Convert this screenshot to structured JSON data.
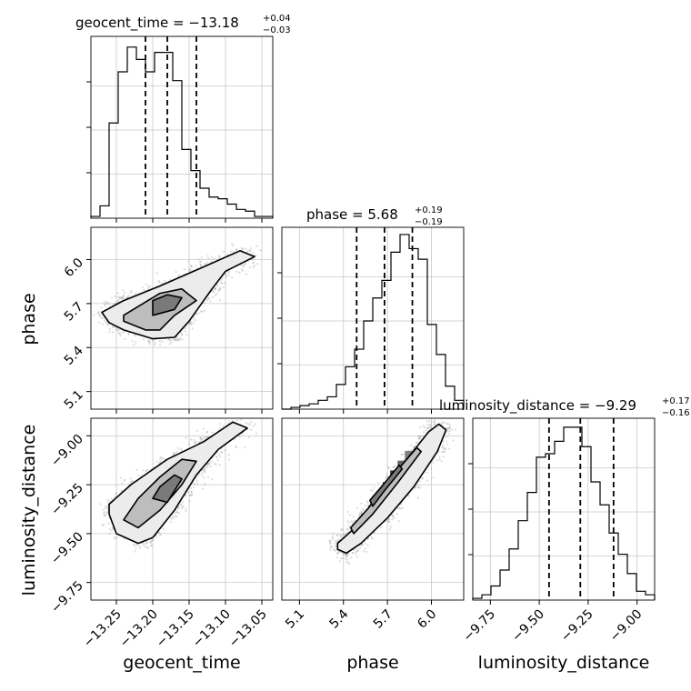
{
  "chart_data": {
    "type": "corner",
    "parameters": [
      "geocent_time",
      "phase",
      "luminosity_distance"
    ],
    "panels": {
      "geocent_time": {
        "title_main": "geocent_time = −13.18",
        "title_sup": "+0.04",
        "title_sub": "−0.03",
        "median": -13.18,
        "lower": -13.21,
        "upper": -13.14,
        "hist_x_range": [
          -13.285,
          -13.035
        ],
        "hist_counts": [
          0.01,
          0.07,
          0.54,
          0.83,
          0.97,
          0.9,
          0.83,
          0.94,
          0.94,
          0.78,
          0.39,
          0.27,
          0.17,
          0.12,
          0.11,
          0.08,
          0.05,
          0.04,
          0.01,
          0.01
        ],
        "xticks": [
          "−13.25",
          "−13.20",
          "−13.15",
          "−13.10",
          "−13.05"
        ],
        "xtick_values": [
          -13.25,
          -13.2,
          -13.15,
          -13.1,
          -13.05
        ]
      },
      "phase": {
        "title_main": "phase = 5.68",
        "title_sup": "+0.19",
        "title_sub": "−0.19",
        "median": 5.68,
        "lower": 5.49,
        "upper": 5.87,
        "hist_x_range": [
          4.98,
          6.22
        ],
        "hist_counts": [
          0.0,
          0.01,
          0.02,
          0.03,
          0.05,
          0.07,
          0.14,
          0.24,
          0.34,
          0.5,
          0.63,
          0.73,
          0.89,
          0.99,
          0.91,
          0.85,
          0.48,
          0.31,
          0.13,
          0.05
        ],
        "xticks": [
          "5.1",
          "5.4",
          "5.7",
          "6.0"
        ],
        "xtick_values": [
          5.1,
          5.4,
          5.7,
          6.0
        ],
        "yticks": [
          "6.0",
          "5.7",
          "5.4",
          "5.1"
        ],
        "ytick_values": [
          6.0,
          5.7,
          5.4,
          5.1
        ]
      },
      "luminosity_distance": {
        "title_main": "luminosity_distance = −9.29",
        "title_sup": "+0.17",
        "title_sub": "−0.16",
        "median": -9.29,
        "lower": -9.45,
        "upper": -9.12,
        "hist_x_range": [
          -9.84,
          -8.91
        ],
        "hist_counts": [
          0.01,
          0.03,
          0.08,
          0.17,
          0.29,
          0.45,
          0.61,
          0.81,
          0.83,
          0.9,
          0.98,
          0.98,
          0.87,
          0.67,
          0.54,
          0.38,
          0.26,
          0.15,
          0.05,
          0.03
        ],
        "xticks": [
          "−9.75",
          "−9.50",
          "−9.25",
          "−9.00"
        ],
        "xtick_values": [
          -9.75,
          -9.5,
          -9.25,
          -9.0
        ],
        "yticks": [
          "−9.00",
          "−9.25",
          "−9.50",
          "−9.75"
        ],
        "ytick_values": [
          -9.0,
          -9.25,
          -9.5,
          -9.75
        ]
      }
    },
    "xlabels": [
      "geocent_time",
      "phase",
      "luminosity_distance"
    ],
    "ylabels": [
      "phase",
      "luminosity_distance"
    ],
    "pairs": [
      {
        "x": "geocent_time",
        "y": "phase",
        "samples_center": [
          -13.18,
          5.68
        ],
        "contours": [
          [
            [
              -13.26,
              5.57
            ],
            [
              -13.24,
              5.52
            ],
            [
              -13.2,
              5.46
            ],
            [
              -13.17,
              5.47
            ],
            [
              -13.15,
              5.58
            ],
            [
              -13.12,
              5.79
            ],
            [
              -13.1,
              5.92
            ],
            [
              -13.06,
              6.02
            ],
            [
              -13.08,
              6.06
            ],
            [
              -13.13,
              5.95
            ],
            [
              -13.19,
              5.82
            ],
            [
              -13.24,
              5.72
            ],
            [
              -13.27,
              5.64
            ]
          ],
          [
            [
              -13.24,
              5.58
            ],
            [
              -13.21,
              5.52
            ],
            [
              -13.19,
              5.52
            ],
            [
              -13.17,
              5.62
            ],
            [
              -13.14,
              5.72
            ],
            [
              -13.16,
              5.8
            ],
            [
              -13.19,
              5.77
            ],
            [
              -13.22,
              5.68
            ],
            [
              -13.24,
              5.62
            ]
          ],
          [
            [
              -13.2,
              5.62
            ],
            [
              -13.17,
              5.66
            ],
            [
              -13.16,
              5.74
            ],
            [
              -13.18,
              5.76
            ],
            [
              -13.2,
              5.72
            ]
          ]
        ],
        "density_cells": [
          [
            -13.18,
            5.68,
            0.9
          ],
          [
            -13.17,
            5.71,
            0.85
          ],
          [
            -13.19,
            5.66,
            0.7
          ],
          [
            -13.16,
            5.74,
            0.6
          ],
          [
            -13.2,
            5.63,
            0.55
          ],
          [
            -13.18,
            5.73,
            0.5
          ],
          [
            -13.24,
            5.56,
            0.35
          ]
        ]
      },
      {
        "x": "geocent_time",
        "y": "luminosity_distance",
        "samples_center": [
          -13.18,
          -9.29
        ],
        "contours": [
          [
            [
              -13.26,
              -9.4
            ],
            [
              -13.25,
              -9.5
            ],
            [
              -13.22,
              -9.55
            ],
            [
              -13.2,
              -9.52
            ],
            [
              -13.17,
              -9.38
            ],
            [
              -13.14,
              -9.2
            ],
            [
              -13.11,
              -9.07
            ],
            [
              -13.07,
              -8.96
            ],
            [
              -13.09,
              -8.93
            ],
            [
              -13.13,
              -9.03
            ],
            [
              -13.18,
              -9.12
            ],
            [
              -13.23,
              -9.25
            ],
            [
              -13.26,
              -9.35
            ]
          ],
          [
            [
              -13.24,
              -9.43
            ],
            [
              -13.22,
              -9.47
            ],
            [
              -13.19,
              -9.38
            ],
            [
              -13.16,
              -9.25
            ],
            [
              -13.14,
              -9.13
            ],
            [
              -13.16,
              -9.12
            ],
            [
              -13.19,
              -9.21
            ],
            [
              -13.22,
              -9.32
            ]
          ],
          [
            [
              -13.2,
              -9.32
            ],
            [
              -13.18,
              -9.34
            ],
            [
              -13.16,
              -9.22
            ],
            [
              -13.17,
              -9.2
            ],
            [
              -13.19,
              -9.26
            ]
          ]
        ],
        "density_cells": [
          [
            -13.18,
            -9.28,
            0.9
          ],
          [
            -13.17,
            -9.24,
            0.8
          ],
          [
            -13.19,
            -9.32,
            0.7
          ],
          [
            -13.16,
            -9.2,
            0.5
          ],
          [
            -13.15,
            -9.15,
            0.4
          ],
          [
            -13.24,
            -9.45,
            0.35
          ]
        ]
      },
      {
        "x": "phase",
        "y": "luminosity_distance",
        "samples_center": [
          5.68,
          -9.29
        ],
        "contours": [
          [
            [
              5.36,
              -9.58
            ],
            [
              5.36,
              -9.55
            ],
            [
              5.48,
              -9.47
            ],
            [
              5.63,
              -9.33
            ],
            [
              5.8,
              -9.15
            ],
            [
              5.98,
              -8.98
            ],
            [
              6.05,
              -8.94
            ],
            [
              6.1,
              -8.97
            ],
            [
              6.04,
              -9.08
            ],
            [
              5.88,
              -9.26
            ],
            [
              5.7,
              -9.42
            ],
            [
              5.52,
              -9.55
            ],
            [
              5.42,
              -9.6
            ]
          ],
          [
            [
              5.47,
              -9.5
            ],
            [
              5.6,
              -9.4
            ],
            [
              5.77,
              -9.24
            ],
            [
              5.93,
              -9.08
            ],
            [
              5.9,
              -9.06
            ],
            [
              5.74,
              -9.2
            ],
            [
              5.57,
              -9.37
            ],
            [
              5.45,
              -9.47
            ]
          ],
          [
            [
              5.6,
              -9.36
            ],
            [
              5.68,
              -9.28
            ],
            [
              5.8,
              -9.17
            ],
            [
              5.78,
              -9.15
            ],
            [
              5.66,
              -9.26
            ],
            [
              5.58,
              -9.33
            ]
          ]
        ],
        "density_cells": [
          [
            5.65,
            -9.33,
            0.95
          ],
          [
            5.7,
            -9.26,
            0.9
          ],
          [
            5.75,
            -9.2,
            0.8
          ],
          [
            5.6,
            -9.38,
            0.75
          ],
          [
            5.8,
            -9.15,
            0.6
          ],
          [
            5.85,
            -9.1,
            0.5
          ],
          [
            5.55,
            -9.42,
            0.5
          ]
        ]
      }
    ]
  }
}
